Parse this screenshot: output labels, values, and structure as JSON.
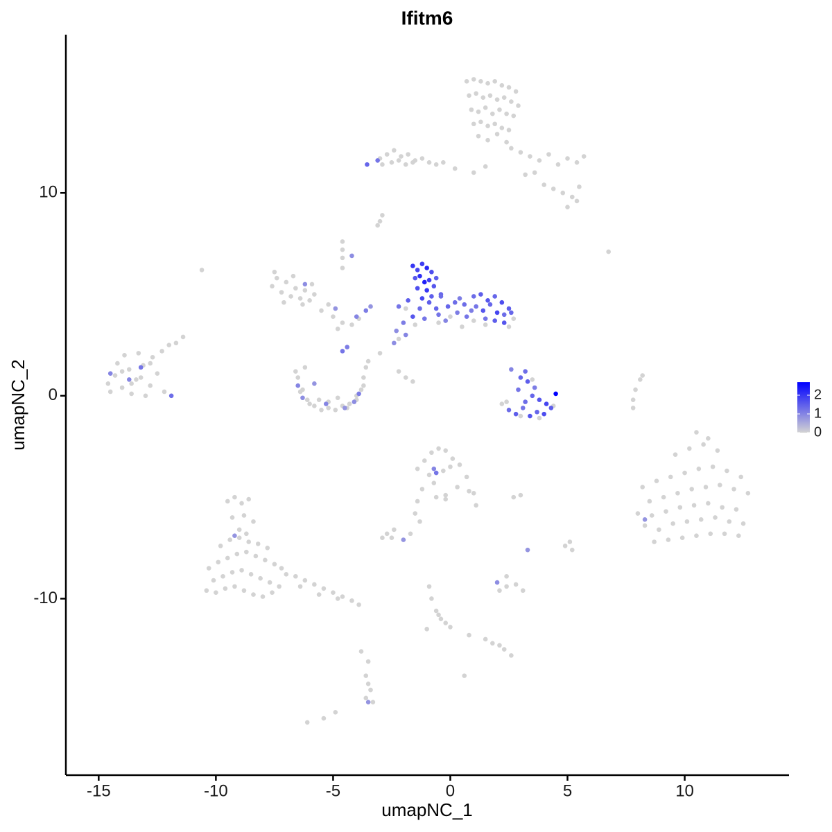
{
  "chart_data": {
    "type": "scatter",
    "title": "Ifitm6",
    "x_label": "umapNC_1",
    "y_label": "umapNC_2",
    "xlim": [
      -16.4,
      14.45
    ],
    "ylim": [
      -18.7,
      17.8
    ],
    "xticks": [
      -15,
      -10,
      -5,
      0,
      5,
      10
    ],
    "yticks": [
      -10,
      0,
      10
    ],
    "color_low": "#d3d3d3",
    "color_high": "#0000ff",
    "color_lim": [
      0,
      2.7
    ],
    "color_ticks": [
      0,
      1,
      2
    ],
    "x": [
      0.7,
      1.0,
      1.3,
      1.6,
      1.9,
      2.2,
      2.5,
      2.8,
      0.8,
      1.1,
      1.4,
      1.7,
      2.0,
      2.3,
      2.6,
      2.9,
      0.9,
      1.2,
      1.5,
      1.8,
      2.1,
      2.4,
      2.7,
      1.0,
      1.3,
      1.6,
      1.9,
      2.2,
      2.5,
      1.2,
      1.6,
      2.0,
      2.4,
      2.6,
      3.0,
      3.4,
      3.8,
      4.2,
      4.6,
      5.0,
      5.4,
      5.7,
      4.0,
      4.4,
      4.8,
      5.2,
      5.5,
      5.0,
      5.4,
      3.6,
      3.2,
      1.5,
      1.0,
      0.2,
      -0.3,
      -3.0,
      -2.7,
      -2.4,
      -2.1,
      -1.8,
      -1.5,
      -1.2,
      -0.9,
      -0.6,
      -2.9,
      -2.5,
      -2.2,
      -1.9,
      -1.6,
      -3.55,
      -3.1,
      -14.6,
      -14.3,
      -14.0,
      -13.7,
      -13.4,
      -13.1,
      -12.8,
      -12.5,
      -12.2,
      -14.5,
      -14.2,
      -13.9,
      -13.6,
      -13.3,
      -13.0,
      -12.7,
      -14.0,
      -13.6,
      -13.2,
      -12.8,
      -12.3,
      -12.0,
      -11.7,
      -11.4,
      -13.7,
      -13.2,
      -14.5,
      -11.9,
      -7.6,
      -7.4,
      -7.2,
      -7.0,
      -6.8,
      -6.6,
      -6.4,
      -6.2,
      -6.0,
      -5.8,
      -7.5,
      -7.1,
      -6.7,
      -6.3,
      -5.9,
      -5.5,
      -5.0,
      -4.6,
      -4.2,
      -3.9,
      -5.2,
      -4.8,
      -6.2,
      -4.9,
      -4.0,
      -3.6,
      -3.4,
      -4.4,
      -4.6,
      -4.6,
      -4.6,
      -4.6,
      -4.6,
      -4.2,
      -6.5,
      -6.3,
      -6.1,
      -5.8,
      -5.5,
      -5.2,
      -4.9,
      -4.6,
      -4.3,
      -4.0,
      -3.8,
      -3.7,
      -6.4,
      -6.0,
      -5.6,
      -5.2,
      -4.8,
      -4.4,
      -4.0,
      -3.6,
      -3.5,
      -3.7,
      -6.6,
      -6.2,
      -6.3,
      -5.3,
      -4.5,
      -3.9,
      -5.8,
      -6.5,
      -4.1,
      -2.2,
      -1.9,
      -1.6,
      -3.0,
      -3.0,
      -1.5,
      -0.5,
      0.5,
      1.5,
      2.5,
      2.7,
      0.0,
      1.0,
      -1.9,
      -2.2,
      -2.3,
      -1.6,
      -1.4,
      -1.2,
      -1.0,
      -0.8,
      -1.5,
      -1.3,
      -1.1,
      -0.9,
      -0.6,
      -1.4,
      -1.0,
      -0.7,
      -0.4,
      -1.2,
      -0.8,
      -1.3,
      -0.9,
      -0.5,
      -0.1,
      0.3,
      0.6,
      -1.6,
      -1.1,
      -0.6,
      -0.2,
      0.2,
      0.7,
      -1.8,
      -0.4,
      0.4,
      1.0,
      1.3,
      1.6,
      1.9,
      2.2,
      2.5,
      1.1,
      1.4,
      1.7,
      2.0,
      2.3,
      2.6,
      1.5,
      1.9,
      2.3,
      0.9,
      -2.2,
      -2.0,
      -1.9,
      -2.4,
      2.4,
      3.0,
      3.8,
      4.4,
      3.5,
      2.2,
      2.5,
      2.8,
      3.1,
      3.4,
      3.7,
      4.0,
      4.3,
      3.2,
      3.5,
      3.8,
      4.1,
      2.9,
      3.3,
      3.6,
      3.0,
      3.2,
      2.6,
      4.5,
      8.2,
      8.8,
      9.4,
      10.0,
      10.6,
      11.2,
      11.8,
      12.4,
      8.5,
      9.1,
      9.7,
      10.3,
      10.9,
      11.5,
      12.1,
      12.7,
      8.0,
      8.6,
      9.2,
      9.8,
      10.4,
      11.0,
      11.6,
      12.2,
      8.3,
      8.9,
      9.5,
      10.1,
      10.7,
      11.3,
      11.9,
      12.5,
      8.7,
      9.3,
      9.9,
      10.5,
      11.1,
      11.7,
      12.3,
      9.6,
      10.2,
      10.8,
      11.4,
      10.5,
      11.0,
      8.3,
      -1.4,
      -1.1,
      -0.8,
      -0.5,
      -0.2,
      0.1,
      0.4,
      0.7,
      1.0,
      -1.2,
      -0.7,
      -0.2,
      0.3,
      0.8,
      -0.6,
      -0.3,
      0.0,
      -0.9,
      1.1,
      -0.2,
      -0.6,
      -0.7,
      -1.4,
      -1.3,
      -10.3,
      -9.9,
      -9.5,
      -9.1,
      -8.7,
      -8.3,
      -7.9,
      -7.5,
      -7.2,
      -10.1,
      -9.7,
      -9.3,
      -8.9,
      -8.5,
      -8.1,
      -7.7,
      -7.3,
      -10.4,
      -10.0,
      -9.6,
      -9.2,
      -8.8,
      -8.4,
      -8.0,
      -7.6,
      -9.8,
      -9.4,
      -9.0,
      -8.6,
      -8.2,
      -7.8,
      -9.5,
      -9.2,
      -8.9,
      -8.6,
      -9.3,
      -8.8,
      -8.4,
      -9.0,
      -8.7,
      -7.0,
      -6.6,
      -6.2,
      -5.8,
      -5.4,
      -5.0,
      -4.6,
      -4.2,
      -3.9,
      -6.4,
      -5.6,
      -4.8,
      -9.2,
      -2.7,
      -2.4,
      -2.9,
      -2.5,
      -1.5,
      -2.0,
      -1.7,
      2.4,
      2.8,
      3.1,
      2.1,
      2.0,
      2.4,
      -0.9,
      -0.8,
      -0.6,
      -0.4,
      -0.2,
      -0.5,
      0.0,
      -1.0,
      1.8,
      2.3,
      2.6,
      2.1,
      0.8,
      1.5,
      -3.6,
      -3.5,
      -3.4,
      -3.6,
      -3.3,
      -3.8,
      -3.5,
      -3.5,
      -5.4,
      -6.1,
      -4.9,
      0.6,
      4.9,
      5.2,
      5.1,
      3.3,
      2.7,
      3.0,
      7.8,
      7.9,
      8.1,
      8.2,
      7.8,
      -2.9,
      -3.1,
      -10.6,
      6.75
    ],
    "y": [
      15.5,
      15.6,
      15.5,
      15.4,
      15.5,
      15.3,
      15.2,
      15.0,
      14.8,
      14.9,
      14.7,
      14.8,
      14.6,
      14.7,
      14.5,
      14.3,
      14.1,
      14.0,
      14.2,
      13.9,
      14.1,
      13.9,
      13.8,
      13.4,
      13.5,
      13.3,
      13.4,
      13.2,
      13.1,
      12.8,
      12.6,
      12.9,
      12.5,
      12.2,
      12.0,
      11.8,
      11.6,
      11.9,
      11.4,
      11.7,
      11.5,
      11.8,
      10.4,
      10.2,
      10.0,
      9.8,
      10.3,
      9.3,
      9.6,
      11.0,
      10.9,
      11.3,
      11.0,
      11.2,
      11.5,
      11.7,
      11.9,
      12.1,
      11.8,
      11.9,
      11.6,
      11.7,
      11.5,
      11.4,
      11.4,
      11.5,
      11.6,
      11.4,
      11.5,
      11.4,
      11.6,
      0.6,
      1.0,
      0.4,
      1.3,
      0.8,
      1.5,
      0.5,
      1.1,
      0.2,
      0.2,
      1.6,
      2.0,
      0.1,
      2.1,
      0.0,
      1.9,
      1.2,
      0.6,
      0.9,
      1.6,
      2.2,
      2.5,
      2.6,
      2.9,
      0.8,
      1.4,
      1.1,
      0.0,
      5.4,
      5.8,
      5.1,
      5.6,
      4.9,
      5.3,
      4.8,
      5.2,
      4.7,
      5.0,
      6.1,
      4.6,
      5.9,
      4.5,
      5.5,
      4.2,
      3.9,
      3.6,
      3.5,
      3.8,
      4.5,
      3.3,
      5.5,
      4.3,
      3.9,
      4.2,
      4.4,
      2.4,
      2.2,
      7.6,
      7.2,
      6.8,
      6.3,
      6.9,
      0.9,
      0.3,
      -0.2,
      -0.5,
      -0.7,
      -0.6,
      -0.7,
      -0.5,
      -0.4,
      -0.2,
      0.3,
      0.9,
      0.2,
      -0.4,
      -0.2,
      -0.3,
      -0.1,
      -0.6,
      0.0,
      1.4,
      1.7,
      0.5,
      1.2,
      1.4,
      -0.1,
      -0.4,
      -0.6,
      0.1,
      0.6,
      0.5,
      -0.3,
      1.2,
      0.9,
      0.7,
      2.1,
      8.6,
      3.5,
      3.6,
      3.4,
      3.5,
      3.4,
      3.8,
      3.9,
      3.7,
      4.3,
      2.8,
      3.2,
      6.4,
      6.2,
      6.5,
      6.3,
      6.1,
      5.8,
      5.9,
      5.6,
      5.7,
      5.8,
      5.3,
      5.2,
      5.4,
      5.0,
      4.8,
      4.9,
      4.3,
      4.6,
      4.0,
      4.4,
      4.1,
      4.5,
      3.9,
      3.8,
      4.3,
      3.7,
      4.6,
      3.9,
      4.7,
      4.9,
      4.8,
      4.9,
      5.0,
      4.7,
      4.9,
      4.6,
      4.3,
      4.4,
      4.2,
      4.5,
      4.1,
      4.0,
      4.1,
      3.8,
      3.7,
      3.6,
      4.2,
      4.4,
      3.6,
      3.0,
      2.6,
      -0.3,
      -1.0,
      -1.1,
      -0.5,
      0.8,
      -0.4,
      -0.7,
      -0.9,
      -0.6,
      -1.0,
      -0.8,
      -0.9,
      -0.6,
      -0.3,
      0.0,
      -0.2,
      -0.4,
      0.3,
      0.7,
      0.4,
      0.9,
      1.2,
      1.3,
      0.1,
      -4.5,
      -4.2,
      -4.0,
      -3.8,
      -3.6,
      -3.5,
      -3.7,
      -4.0,
      -5.2,
      -5.0,
      -4.8,
      -4.6,
      -4.5,
      -4.4,
      -4.6,
      -4.8,
      -5.8,
      -5.9,
      -5.7,
      -5.5,
      -5.4,
      -5.3,
      -5.5,
      -5.6,
      -6.4,
      -6.6,
      -6.3,
      -6.2,
      -6.1,
      -6.0,
      -6.2,
      -6.3,
      -7.2,
      -7.1,
      -7.0,
      -6.9,
      -6.8,
      -6.8,
      -6.9,
      -2.9,
      -2.6,
      -2.4,
      -2.7,
      -1.8,
      -2.1,
      -6.1,
      -3.6,
      -3.2,
      -2.8,
      -2.6,
      -2.7,
      -3.1,
      -3.4,
      -4.0,
      -4.8,
      -4.6,
      -4.3,
      -4.9,
      -4.5,
      -4.7,
      -5.0,
      -3.7,
      -3.5,
      -3.9,
      -5.4,
      -5.1,
      -3.8,
      -3.6,
      -5.2,
      -6.2,
      -8.5,
      -8.2,
      -8.0,
      -7.8,
      -7.7,
      -7.9,
      -8.1,
      -8.3,
      -8.5,
      -9.1,
      -8.9,
      -8.7,
      -8.6,
      -8.8,
      -9.0,
      -9.2,
      -9.4,
      -9.6,
      -9.7,
      -9.5,
      -9.4,
      -9.6,
      -9.8,
      -9.9,
      -9.7,
      -7.4,
      -7.1,
      -7.0,
      -7.2,
      -7.3,
      -7.5,
      -5.2,
      -5.0,
      -5.3,
      -5.1,
      -6.0,
      -5.9,
      -6.2,
      -6.6,
      -6.8,
      -8.8,
      -8.9,
      -9.1,
      -9.3,
      -9.5,
      -9.7,
      -9.9,
      -10.1,
      -10.3,
      -9.4,
      -9.8,
      -10.0,
      -6.9,
      -6.8,
      -6.6,
      -7.0,
      -7.0,
      -5.8,
      -7.1,
      -6.8,
      -9.4,
      -9.3,
      -9.6,
      -9.6,
      -9.2,
      -8.9,
      -9.4,
      -10.0,
      -10.6,
      -11.0,
      -11.2,
      -10.8,
      -11.4,
      -11.5,
      -12.2,
      -12.5,
      -12.8,
      -12.3,
      -11.8,
      -12.0,
      -13.8,
      -14.2,
      -14.5,
      -14.9,
      -15.1,
      -12.6,
      -13.1,
      -15.1,
      -15.9,
      -16.1,
      -15.6,
      -13.8,
      -7.4,
      -7.6,
      -7.2,
      -7.6,
      -5.0,
      -4.9,
      -0.2,
      0.3,
      0.8,
      1.0,
      -0.6,
      8.9,
      8.4,
      6.2,
      7.1
    ],
    "values": [
      0,
      0,
      0,
      0,
      0,
      0,
      0,
      0,
      0,
      0,
      0,
      0,
      0,
      0,
      0,
      0,
      0,
      0,
      0,
      0,
      0,
      0,
      0,
      0,
      0,
      0,
      0,
      0,
      0,
      0,
      0,
      0,
      0,
      0,
      0,
      0,
      0,
      0,
      0,
      0,
      0,
      0,
      0,
      0,
      0,
      0,
      0,
      0,
      0,
      0,
      0,
      0,
      0,
      0,
      0,
      0,
      0,
      0,
      0,
      0,
      0,
      0,
      0,
      0,
      0,
      0,
      0,
      0,
      0,
      1.4,
      1.2,
      0,
      0,
      0,
      0,
      0,
      0,
      0,
      0,
      0,
      0,
      0,
      0,
      0,
      0,
      0,
      0,
      0,
      0,
      0,
      0,
      0,
      0,
      0,
      0,
      1.0,
      1.2,
      1.0,
      1.3,
      0,
      0,
      0,
      0,
      0,
      0,
      0,
      0,
      0,
      0,
      0,
      0,
      0,
      0,
      0,
      0,
      0,
      0,
      0,
      0,
      0,
      0,
      0.9,
      0.8,
      1.0,
      1.1,
      0.8,
      1.1,
      1.2,
      0,
      0,
      0,
      0,
      0.9,
      0,
      0,
      0,
      0,
      0,
      0,
      0,
      0,
      0,
      0,
      0,
      0,
      0,
      0,
      0,
      0,
      0,
      0,
      0,
      0,
      0,
      0,
      0,
      0,
      0.9,
      1.0,
      0.8,
      1.1,
      0.8,
      1.0,
      0.9,
      0,
      0,
      0,
      0,
      0,
      0,
      0,
      0,
      0,
      0,
      0,
      0,
      0,
      0,
      0,
      0.9,
      2.0,
      1.8,
      1.9,
      2.2,
      1.7,
      1.6,
      2.1,
      2.3,
      1.9,
      1.5,
      1.7,
      2.0,
      1.6,
      1.4,
      1.8,
      1.5,
      1.3,
      1.5,
      1.2,
      1.4,
      1.1,
      1.3,
      1.6,
      1.2,
      1.4,
      1.0,
      1.3,
      1.2,
      1.5,
      1.3,
      1.1,
      1.3,
      1.5,
      1.6,
      1.4,
      1.7,
      1.5,
      1.2,
      1.6,
      1.4,
      1.8,
      1.3,
      1.4,
      1.2,
      1.5,
      1.6,
      1.1,
      1.2,
      1.1,
      1.0,
      0.9,
      0,
      0,
      0,
      0,
      0,
      0,
      1.3,
      1.5,
      1.2,
      1.6,
      1.4,
      1.7,
      1.5,
      1.3,
      1.4,
      1.6,
      1.8,
      1.2,
      1.5,
      1.1,
      1.4,
      1.3,
      1.0,
      2.7,
      0,
      0,
      0,
      0,
      0,
      0,
      0,
      0,
      0,
      0,
      0,
      0,
      0,
      0,
      0,
      0,
      0,
      0,
      0,
      0,
      0,
      0,
      0,
      0,
      0,
      0,
      0,
      0,
      0,
      0,
      0,
      0,
      0,
      0,
      0,
      0,
      0,
      0,
      0,
      0,
      0,
      0,
      0,
      0,
      0,
      0.8,
      0,
      0,
      0,
      0,
      0,
      0,
      0,
      0,
      0,
      0,
      0,
      0,
      0,
      0,
      0,
      0,
      0,
      0,
      0,
      0,
      1.2,
      1.0,
      0,
      0,
      0,
      0,
      0,
      0,
      0,
      0,
      0,
      0,
      0,
      0,
      0,
      0,
      0,
      0,
      0,
      0,
      0,
      0,
      0,
      0,
      0,
      0,
      0,
      0,
      0,
      0,
      0,
      0,
      0,
      0,
      0,
      0,
      0,
      0,
      0,
      0,
      0,
      0,
      0,
      0,
      0,
      0,
      0,
      0,
      0,
      0,
      0,
      0,
      0,
      0,
      0,
      0,
      0.8,
      0,
      0,
      0,
      0,
      0,
      0.8,
      0,
      0,
      0,
      0,
      0,
      0.9,
      0,
      0,
      0,
      0,
      0,
      0,
      0,
      0,
      0,
      0,
      0,
      0,
      0,
      0,
      0,
      0,
      0,
      0,
      0,
      0,
      0,
      0,
      0.8,
      0,
      0,
      0,
      0,
      0,
      0,
      0,
      0.8,
      0,
      0,
      0,
      0,
      0,
      0,
      0,
      0,
      0,
      0,
      0
    ]
  }
}
